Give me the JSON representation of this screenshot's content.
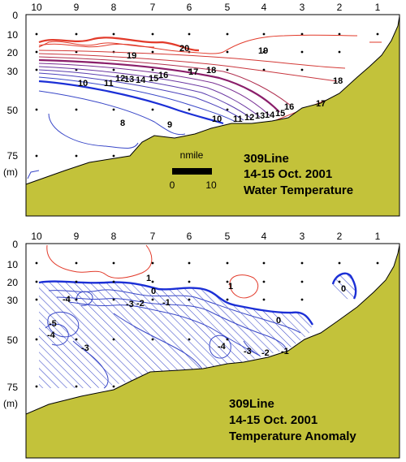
{
  "figure": {
    "stations": [
      "10",
      "9",
      "8",
      "7",
      "6",
      "5",
      "4",
      "3",
      "2",
      "1"
    ],
    "depth_ticks": [
      "0",
      "10",
      "20",
      "30",
      "50",
      "75",
      "(m)"
    ],
    "colors": {
      "ocean": "#ffffff",
      "land": "#c3c23a",
      "warm_contour": "#e23a2a",
      "cool_contour": "#3a48c8",
      "thermocline": "#8a1e6a",
      "zero_line": "#1b2fd6",
      "hatch": "#3a48c8"
    }
  },
  "panel_top": {
    "caption_line1": "309Line",
    "caption_line2": "14-15 Oct. 2001",
    "caption_line3": "Water Temperature",
    "scale_unit": "nmile",
    "scale_start": "0",
    "scale_end": "10",
    "contour_labels": {
      "l20": "20",
      "l19a": "19",
      "l19b": "19",
      "l17a": "17",
      "l18a": "18",
      "l18b": "18",
      "l17b": "17",
      "l10a": "10",
      "l11": "11",
      "l12": "12",
      "l13": "13",
      "l14": "14",
      "l15": "15",
      "l16": "16",
      "l8": "8",
      "l9": "9",
      "l10b": "10",
      "l11b": "11",
      "l12b": "12",
      "l13b": "13",
      "l14b": "14",
      "l15b": "15",
      "l16b": "16"
    }
  },
  "panel_bottom": {
    "caption_line1": "309Line",
    "caption_line2": "14-15 Oct. 2001",
    "caption_line3": "Temperature Anomaly",
    "contour_labels": {
      "p1a": "1",
      "p1b": "1",
      "z0a": "0",
      "z0b": "0",
      "z0c": "0",
      "m4a": "-4",
      "m3a": "-3",
      "m2a": "-2",
      "m1a": "-1",
      "m5": "-5",
      "m4b": "-4",
      "m3b": "-3",
      "m4c": "-4",
      "m3c": "-3",
      "m2b": "-2",
      "m1b": "-1"
    }
  }
}
